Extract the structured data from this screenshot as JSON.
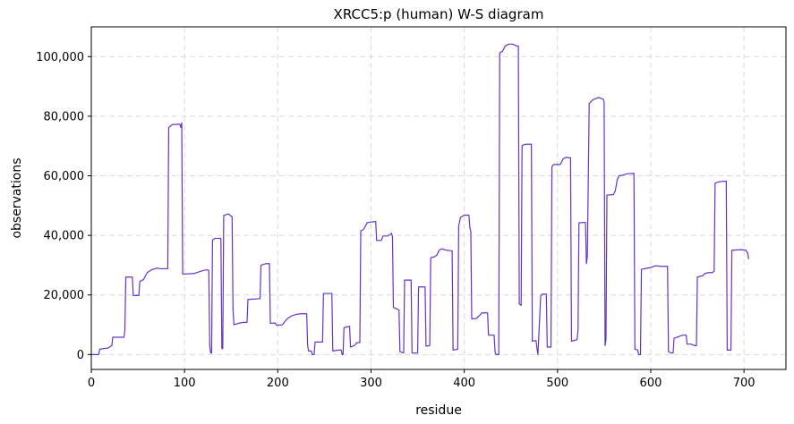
{
  "chart_data": {
    "type": "line",
    "title": "XRCC5:p (human) W-S diagram",
    "xlabel": "residue",
    "ylabel": "observations",
    "xlim": [
      0,
      745
    ],
    "ylim": [
      -5000,
      110000
    ],
    "x_ticks": [
      0,
      100,
      200,
      300,
      400,
      500,
      600,
      700
    ],
    "y_ticks": [
      0,
      20000,
      40000,
      60000,
      80000,
      100000
    ],
    "x_tick_labels": [
      "0",
      "100",
      "200",
      "300",
      "400",
      "500",
      "600",
      "700"
    ],
    "y_tick_labels": [
      "0",
      "20,000",
      "40,000",
      "60,000",
      "80,000",
      "100,000"
    ],
    "grid": true,
    "line_color": "#6633cc",
    "series": [
      {
        "points": [
          [
            0,
            0
          ],
          [
            8,
            0
          ],
          [
            9,
            1800
          ],
          [
            18,
            2200
          ],
          [
            22,
            3000
          ],
          [
            23,
            5800
          ],
          [
            35,
            5800
          ],
          [
            36,
            8000
          ],
          [
            37,
            26000
          ],
          [
            44,
            26000
          ],
          [
            45,
            19800
          ],
          [
            51,
            19800
          ],
          [
            52,
            24500
          ],
          [
            56,
            25200
          ],
          [
            60,
            27500
          ],
          [
            65,
            28500
          ],
          [
            70,
            29000
          ],
          [
            75,
            28800
          ],
          [
            82,
            28800
          ],
          [
            83,
            76200
          ],
          [
            87,
            77200
          ],
          [
            95,
            77300
          ],
          [
            96,
            76200
          ],
          [
            97,
            77800
          ],
          [
            98,
            27000
          ],
          [
            110,
            27200
          ],
          [
            118,
            28000
          ],
          [
            124,
            28500
          ],
          [
            126,
            28200
          ],
          [
            127,
            3000
          ],
          [
            128,
            500
          ],
          [
            129,
            500
          ],
          [
            130,
            38500
          ],
          [
            133,
            39000
          ],
          [
            139,
            39000
          ],
          [
            140,
            2000
          ],
          [
            141,
            2000
          ],
          [
            142,
            46700
          ],
          [
            147,
            47200
          ],
          [
            151,
            46200
          ],
          [
            152,
            15000
          ],
          [
            153,
            10000
          ],
          [
            158,
            10500
          ],
          [
            163,
            10800
          ],
          [
            167,
            10800
          ],
          [
            168,
            18500
          ],
          [
            178,
            18700
          ],
          [
            181,
            18800
          ],
          [
            182,
            30000
          ],
          [
            187,
            30500
          ],
          [
            191,
            30500
          ],
          [
            192,
            10500
          ],
          [
            197,
            10600
          ],
          [
            199,
            9800
          ],
          [
            205,
            10000
          ],
          [
            210,
            12000
          ],
          [
            215,
            13000
          ],
          [
            220,
            13500
          ],
          [
            225,
            13700
          ],
          [
            231,
            13700
          ],
          [
            232,
            3000
          ],
          [
            233,
            1200
          ],
          [
            236,
            1200
          ],
          [
            237,
            0
          ],
          [
            239,
            0
          ],
          [
            240,
            4200
          ],
          [
            248,
            4200
          ],
          [
            249,
            20500
          ],
          [
            258,
            20500
          ],
          [
            259,
            1200
          ],
          [
            265,
            1500
          ],
          [
            268,
            1500
          ],
          [
            269,
            0
          ],
          [
            270,
            0
          ],
          [
            271,
            9000
          ],
          [
            277,
            9500
          ],
          [
            278,
            2500
          ],
          [
            282,
            3000
          ],
          [
            285,
            4000
          ],
          [
            288,
            4000
          ],
          [
            289,
            41500
          ],
          [
            292,
            42000
          ],
          [
            296,
            44300
          ],
          [
            305,
            44700
          ],
          [
            306,
            38300
          ],
          [
            311,
            38300
          ],
          [
            313,
            39800
          ],
          [
            318,
            39800
          ],
          [
            322,
            40700
          ],
          [
            323,
            39500
          ],
          [
            324,
            15800
          ],
          [
            330,
            15000
          ],
          [
            331,
            1000
          ],
          [
            335,
            500
          ],
          [
            336,
            25000
          ],
          [
            343,
            25000
          ],
          [
            344,
            500
          ],
          [
            350,
            500
          ],
          [
            351,
            22700
          ],
          [
            358,
            22700
          ],
          [
            359,
            2800
          ],
          [
            363,
            3000
          ],
          [
            364,
            32500
          ],
          [
            368,
            32800
          ],
          [
            371,
            33500
          ],
          [
            373,
            35000
          ],
          [
            376,
            35500
          ],
          [
            381,
            35000
          ],
          [
            387,
            34800
          ],
          [
            388,
            1500
          ],
          [
            393,
            1800
          ],
          [
            394,
            43300
          ],
          [
            396,
            46000
          ],
          [
            400,
            46800
          ],
          [
            405,
            46800
          ],
          [
            406,
            42500
          ],
          [
            407,
            41500
          ],
          [
            408,
            12000
          ],
          [
            413,
            12100
          ],
          [
            416,
            13000
          ],
          [
            419,
            14000
          ],
          [
            425,
            14000
          ],
          [
            426,
            6500
          ],
          [
            432,
            6500
          ],
          [
            433,
            1000
          ],
          [
            434,
            0
          ],
          [
            437,
            0
          ],
          [
            438,
            101300
          ],
          [
            441,
            101800
          ],
          [
            444,
            103600
          ],
          [
            448,
            104200
          ],
          [
            452,
            104200
          ],
          [
            456,
            103600
          ],
          [
            458,
            103600
          ],
          [
            459,
            17000
          ],
          [
            461,
            16500
          ],
          [
            462,
            70200
          ],
          [
            466,
            70600
          ],
          [
            472,
            70600
          ],
          [
            473,
            4500
          ],
          [
            477,
            4700
          ],
          [
            478,
            2000
          ],
          [
            479,
            0
          ],
          [
            482,
            19800
          ],
          [
            484,
            20300
          ],
          [
            488,
            20300
          ],
          [
            489,
            2500
          ],
          [
            493,
            2500
          ],
          [
            494,
            63000
          ],
          [
            496,
            63800
          ],
          [
            503,
            63800
          ],
          [
            506,
            65700
          ],
          [
            509,
            66200
          ],
          [
            514,
            66000
          ],
          [
            515,
            4500
          ],
          [
            521,
            5000
          ],
          [
            522,
            8000
          ],
          [
            523,
            44200
          ],
          [
            530,
            44400
          ],
          [
            531,
            30500
          ],
          [
            532,
            33000
          ],
          [
            534,
            84300
          ],
          [
            538,
            85500
          ],
          [
            544,
            86300
          ],
          [
            549,
            85700
          ],
          [
            550,
            84800
          ],
          [
            551,
            3000
          ],
          [
            552,
            5000
          ],
          [
            553,
            53500
          ],
          [
            560,
            53700
          ],
          [
            562,
            55000
          ],
          [
            564,
            58600
          ],
          [
            566,
            60000
          ],
          [
            570,
            60200
          ],
          [
            575,
            60700
          ],
          [
            582,
            60800
          ],
          [
            583,
            1800
          ],
          [
            586,
            1500
          ],
          [
            587,
            0
          ],
          [
            589,
            0
          ],
          [
            590,
            28600
          ],
          [
            596,
            29000
          ],
          [
            600,
            29200
          ],
          [
            605,
            29800
          ],
          [
            612,
            29600
          ],
          [
            618,
            29600
          ],
          [
            619,
            1000
          ],
          [
            622,
            500
          ],
          [
            624,
            500
          ],
          [
            625,
            5500
          ],
          [
            630,
            6000
          ],
          [
            634,
            6500
          ],
          [
            638,
            6500
          ],
          [
            639,
            3500
          ],
          [
            643,
            3500
          ],
          [
            647,
            3000
          ],
          [
            649,
            3000
          ],
          [
            650,
            26000
          ],
          [
            656,
            26500
          ],
          [
            658,
            27200
          ],
          [
            662,
            27500
          ],
          [
            666,
            27500
          ],
          [
            668,
            28000
          ],
          [
            669,
            57500
          ],
          [
            673,
            58000
          ],
          [
            681,
            58200
          ],
          [
            682,
            1500
          ],
          [
            686,
            1500
          ],
          [
            687,
            35000
          ],
          [
            697,
            35200
          ],
          [
            702,
            35000
          ],
          [
            704,
            34000
          ],
          [
            705,
            32000
          ]
        ]
      }
    ]
  }
}
